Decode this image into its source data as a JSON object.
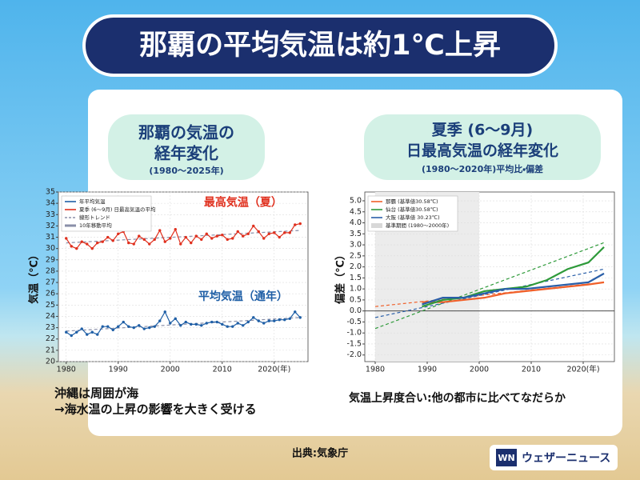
{
  "header": {
    "title": "那覇の平均気温は約1℃上昇"
  },
  "chart_data": [
    {
      "type": "line",
      "title_lines": [
        "那覇の気温の",
        "経年変化"
      ],
      "subtitle": "(1980〜2025年)",
      "ylabel": "気温（℃）",
      "x": [
        1980,
        1981,
        1982,
        1983,
        1984,
        1985,
        1986,
        1987,
        1988,
        1989,
        1990,
        1991,
        1992,
        1993,
        1994,
        1995,
        1996,
        1997,
        1998,
        1999,
        2000,
        2001,
        2002,
        2003,
        2004,
        2005,
        2006,
        2007,
        2008,
        2009,
        2010,
        2011,
        2012,
        2013,
        2014,
        2015,
        2016,
        2017,
        2018,
        2019,
        2020,
        2021,
        2022,
        2023,
        2024,
        2025
      ],
      "series": [
        {
          "name": "年平均気温",
          "color": "#1f5fa6",
          "values": [
            22.6,
            22.3,
            22.6,
            22.9,
            22.4,
            22.6,
            22.4,
            23.1,
            23.1,
            22.8,
            23.1,
            23.5,
            23.1,
            23.0,
            23.2,
            22.9,
            23.0,
            23.1,
            23.6,
            24.4,
            23.4,
            23.8,
            23.2,
            23.5,
            23.3,
            23.3,
            23.2,
            23.4,
            23.5,
            23.5,
            23.3,
            23.1,
            23.1,
            23.4,
            23.2,
            23.5,
            23.9,
            23.6,
            23.4,
            23.6,
            23.6,
            23.7,
            23.7,
            23.8,
            24.4,
            23.9
          ]
        },
        {
          "name": "夏季 (6〜9月) 日最高気温の平均",
          "color": "#e0301e",
          "values": [
            30.9,
            30.2,
            30.0,
            30.6,
            30.4,
            30.0,
            30.5,
            30.6,
            31.0,
            30.7,
            31.3,
            31.5,
            30.5,
            30.4,
            31.1,
            30.8,
            30.4,
            30.8,
            31.6,
            30.6,
            30.9,
            31.7,
            30.4,
            31.0,
            30.5,
            31.1,
            30.8,
            31.3,
            30.9,
            31.1,
            31.2,
            30.8,
            30.9,
            31.5,
            31.1,
            31.3,
            32.0,
            31.5,
            30.9,
            31.3,
            31.4,
            31.0,
            31.4,
            31.4,
            32.1,
            32.2
          ]
        }
      ],
      "trends": [
        {
          "color": "#8a8fa8",
          "x": [
            1980,
            2025
          ],
          "values": [
            22.7,
            23.9
          ]
        },
        {
          "color": "#8a8fa8",
          "x": [
            1980,
            2025
          ],
          "values": [
            30.5,
            31.6
          ]
        }
      ],
      "legend_extra": [
        {
          "name": "線形トレンド",
          "style": "dashed"
        },
        {
          "name": "10年移動平均",
          "style": "thick"
        }
      ],
      "annotations": [
        {
          "text": "平均気温（通年）",
          "color": "#1f5fa6"
        },
        {
          "text": "最高気温（夏）",
          "color": "#e0301e"
        }
      ],
      "markers": true,
      "grid": true,
      "xlim": [
        1978.5,
        2026.5
      ],
      "xticks": [
        1980,
        1990,
        2000,
        2010,
        {
          "value": 2020,
          "label": "2020(年)"
        }
      ],
      "ylim": [
        20,
        35
      ],
      "yticks": [
        20,
        21,
        22,
        23,
        24,
        25,
        26,
        27,
        28,
        29,
        30,
        31,
        32,
        33,
        34,
        35
      ]
    },
    {
      "type": "line",
      "title_lines": [
        "夏季 (6〜9月)",
        "日最高気温の経年変化"
      ],
      "subtitle": "(1980〜2020年)平均比・偏差",
      "ylabel": "偏差（℃）",
      "x": [
        1989,
        1993,
        1997,
        2001,
        2005,
        2009,
        2013,
        2017,
        2021,
        2024
      ],
      "series": [
        {
          "name": "那覇 (基準値30.58℃)",
          "color": "#f0602a",
          "values": [
            0.4,
            0.4,
            0.5,
            0.6,
            0.8,
            0.9,
            1.0,
            1.1,
            1.2,
            1.3
          ]
        },
        {
          "name": "仙台 (基準値30.58℃)",
          "color": "#2e9a3a",
          "values": [
            0.2,
            0.5,
            0.6,
            0.9,
            1.0,
            1.1,
            1.4,
            1.9,
            2.2,
            2.9
          ]
        },
        {
          "name": "大阪 (基準値 30.23℃)",
          "color": "#2a5fa8",
          "values": [
            0.3,
            0.6,
            0.6,
            0.8,
            1.0,
            1.0,
            1.1,
            1.2,
            1.3,
            1.7
          ]
        }
      ],
      "trends": [
        {
          "color": "#f0602a",
          "x": [
            1980,
            2024
          ],
          "values": [
            0.2,
            1.3
          ]
        },
        {
          "color": "#2e9a3a",
          "x": [
            1980,
            2024
          ],
          "values": [
            -0.8,
            3.1
          ]
        },
        {
          "color": "#2a5fa8",
          "x": [
            1980,
            2024
          ],
          "values": [
            -0.3,
            1.9
          ]
        }
      ],
      "reference_period": {
        "label": "基準期間 (1980〜2000年)",
        "range": [
          1980,
          2000
        ]
      },
      "hline": 0,
      "markers": false,
      "grid": true,
      "xlim": [
        1978,
        2026
      ],
      "xticks": [
        1980,
        1990,
        2000,
        2010,
        {
          "value": 2020,
          "label": "2020(年)"
        }
      ],
      "ylim": [
        -2.3,
        5.4
      ],
      "yticks": [
        {
          "value": -2,
          "label": "-2.0"
        },
        {
          "value": -1.5,
          "label": "-1.5"
        },
        {
          "value": -1,
          "label": "-1.0"
        },
        {
          "value": -0.5,
          "label": "-0.5"
        },
        {
          "value": 0,
          "label": "0.0"
        },
        {
          "value": 0.5,
          "label": "0.5"
        },
        {
          "value": 1,
          "label": "1.0"
        },
        {
          "value": 1.5,
          "label": "1.5"
        },
        {
          "value": 2,
          "label": "2.0"
        },
        {
          "value": 2.5,
          "label": "2.5"
        },
        {
          "value": 3,
          "label": "3.0"
        },
        {
          "value": 3.5,
          "label": "3.5"
        },
        {
          "value": 4,
          "label": "4.0"
        },
        {
          "value": 4.5,
          "label": "4.5"
        },
        {
          "value": 5,
          "label": "5.0"
        }
      ]
    }
  ],
  "notes": {
    "left": [
      "沖縄は周囲が海",
      "→海水温の上昇の影響を大きく受ける"
    ],
    "right": "気温上昇度合い:他の都市に比べてなだらか"
  },
  "source": "出典:気象庁",
  "logo": {
    "mark": "WN",
    "name": "ウェザーニュース"
  }
}
